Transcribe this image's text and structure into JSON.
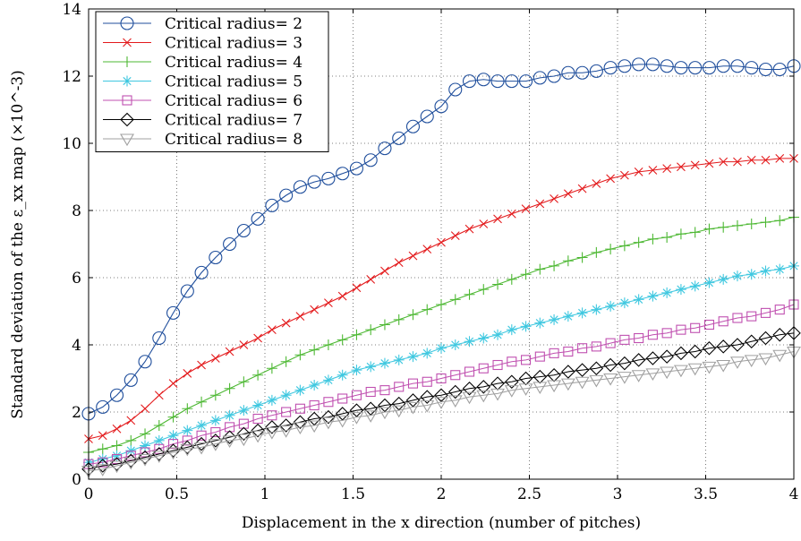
{
  "chart_data": {
    "type": "line",
    "title": "",
    "xlabel": "Displacement in the x direction (number of pitches)",
    "ylabel": "Standard deviation of the ε_xx map (×10^-3)",
    "xlim": [
      0,
      4
    ],
    "ylim": [
      0,
      14
    ],
    "x_ticks": [
      "0",
      "0.5",
      "1",
      "1.5",
      "2",
      "2.5",
      "3",
      "3.5",
      "4"
    ],
    "y_ticks": [
      "0",
      "2",
      "4",
      "6",
      "8",
      "10",
      "12",
      "14"
    ],
    "grid": true,
    "legend_position": "top-left",
    "x": [
      0,
      0.08,
      0.16,
      0.24,
      0.32,
      0.4,
      0.48,
      0.56,
      0.64,
      0.72,
      0.8,
      0.88,
      0.96,
      1.04,
      1.12,
      1.2,
      1.28,
      1.36,
      1.44,
      1.52,
      1.6,
      1.68,
      1.76,
      1.84,
      1.92,
      2.0,
      2.08,
      2.16,
      2.24,
      2.32,
      2.4,
      2.48,
      2.56,
      2.64,
      2.72,
      2.8,
      2.88,
      2.96,
      3.04,
      3.12,
      3.2,
      3.28,
      3.36,
      3.44,
      3.52,
      3.6,
      3.68,
      3.76,
      3.84,
      3.92,
      4.0
    ],
    "series": [
      {
        "name": "Critical radius= 2",
        "color": "#1f4e9c",
        "marker": "circle",
        "values": [
          1.95,
          2.15,
          2.5,
          2.95,
          3.5,
          4.2,
          4.95,
          5.6,
          6.15,
          6.6,
          7.0,
          7.4,
          7.75,
          8.15,
          8.45,
          8.7,
          8.85,
          8.95,
          9.1,
          9.25,
          9.5,
          9.85,
          10.15,
          10.5,
          10.8,
          11.1,
          11.6,
          11.85,
          11.9,
          11.85,
          11.85,
          11.85,
          11.95,
          12.0,
          12.1,
          12.1,
          12.15,
          12.25,
          12.3,
          12.35,
          12.35,
          12.3,
          12.25,
          12.25,
          12.25,
          12.3,
          12.3,
          12.25,
          12.2,
          12.2,
          12.3
        ]
      },
      {
        "name": "Critical radius= 3",
        "color": "#e31a1c",
        "marker": "x",
        "values": [
          1.2,
          1.3,
          1.5,
          1.75,
          2.1,
          2.5,
          2.85,
          3.15,
          3.4,
          3.6,
          3.8,
          4.0,
          4.2,
          4.45,
          4.65,
          4.85,
          5.05,
          5.25,
          5.45,
          5.7,
          5.95,
          6.2,
          6.45,
          6.65,
          6.85,
          7.05,
          7.25,
          7.45,
          7.6,
          7.75,
          7.9,
          8.05,
          8.2,
          8.35,
          8.5,
          8.65,
          8.8,
          8.95,
          9.05,
          9.15,
          9.2,
          9.25,
          9.3,
          9.35,
          9.4,
          9.45,
          9.45,
          9.5,
          9.5,
          9.55,
          9.55
        ]
      },
      {
        "name": "Critical radius= 4",
        "color": "#4db833",
        "marker": "plus",
        "values": [
          0.8,
          0.9,
          1.0,
          1.15,
          1.35,
          1.6,
          1.85,
          2.1,
          2.3,
          2.5,
          2.7,
          2.9,
          3.1,
          3.3,
          3.5,
          3.7,
          3.85,
          4.0,
          4.15,
          4.3,
          4.45,
          4.6,
          4.75,
          4.9,
          5.05,
          5.2,
          5.35,
          5.5,
          5.65,
          5.8,
          5.95,
          6.1,
          6.25,
          6.35,
          6.5,
          6.6,
          6.75,
          6.85,
          6.95,
          7.05,
          7.15,
          7.2,
          7.3,
          7.35,
          7.45,
          7.5,
          7.55,
          7.6,
          7.65,
          7.7,
          7.8
        ]
      },
      {
        "name": "Critical radius= 5",
        "color": "#40c8e0",
        "marker": "asterisk",
        "values": [
          0.5,
          0.6,
          0.7,
          0.85,
          1.0,
          1.15,
          1.3,
          1.45,
          1.6,
          1.75,
          1.9,
          2.05,
          2.2,
          2.35,
          2.5,
          2.65,
          2.8,
          2.95,
          3.1,
          3.25,
          3.35,
          3.45,
          3.55,
          3.65,
          3.75,
          3.9,
          4.0,
          4.1,
          4.2,
          4.3,
          4.45,
          4.55,
          4.65,
          4.75,
          4.85,
          4.95,
          5.05,
          5.15,
          5.25,
          5.35,
          5.45,
          5.55,
          5.65,
          5.75,
          5.85,
          5.95,
          6.05,
          6.1,
          6.2,
          6.25,
          6.35
        ]
      },
      {
        "name": "Critical radius= 6",
        "color": "#c050b0",
        "marker": "square",
        "values": [
          0.45,
          0.5,
          0.6,
          0.7,
          0.8,
          0.9,
          1.05,
          1.15,
          1.3,
          1.4,
          1.55,
          1.65,
          1.8,
          1.9,
          2.0,
          2.1,
          2.2,
          2.3,
          2.4,
          2.5,
          2.6,
          2.65,
          2.75,
          2.85,
          2.9,
          3.0,
          3.1,
          3.2,
          3.3,
          3.4,
          3.5,
          3.55,
          3.65,
          3.75,
          3.8,
          3.9,
          3.95,
          4.05,
          4.15,
          4.2,
          4.3,
          4.35,
          4.45,
          4.5,
          4.6,
          4.7,
          4.8,
          4.85,
          4.95,
          5.05,
          5.2
        ]
      },
      {
        "name": "Critical radius= 7",
        "color": "#000000",
        "marker": "diamond",
        "values": [
          0.3,
          0.4,
          0.45,
          0.55,
          0.65,
          0.75,
          0.85,
          0.95,
          1.05,
          1.15,
          1.25,
          1.35,
          1.45,
          1.55,
          1.6,
          1.7,
          1.8,
          1.85,
          1.95,
          2.05,
          2.1,
          2.2,
          2.25,
          2.35,
          2.45,
          2.5,
          2.6,
          2.7,
          2.75,
          2.85,
          2.9,
          3.0,
          3.05,
          3.1,
          3.2,
          3.25,
          3.3,
          3.4,
          3.45,
          3.55,
          3.6,
          3.65,
          3.75,
          3.8,
          3.9,
          3.95,
          4.0,
          4.1,
          4.2,
          4.3,
          4.35
        ]
      },
      {
        "name": "Critical radius= 8",
        "color": "#a0a0a0",
        "marker": "triangle-down",
        "values": [
          0.25,
          0.3,
          0.4,
          0.5,
          0.6,
          0.7,
          0.8,
          0.9,
          0.95,
          1.05,
          1.15,
          1.2,
          1.3,
          1.4,
          1.45,
          1.55,
          1.6,
          1.7,
          1.75,
          1.85,
          1.9,
          2.0,
          2.05,
          2.15,
          2.2,
          2.3,
          2.35,
          2.45,
          2.5,
          2.55,
          2.65,
          2.7,
          2.75,
          2.8,
          2.85,
          2.9,
          2.95,
          3.0,
          3.05,
          3.1,
          3.15,
          3.2,
          3.25,
          3.3,
          3.35,
          3.4,
          3.5,
          3.55,
          3.6,
          3.7,
          3.8
        ]
      }
    ]
  }
}
